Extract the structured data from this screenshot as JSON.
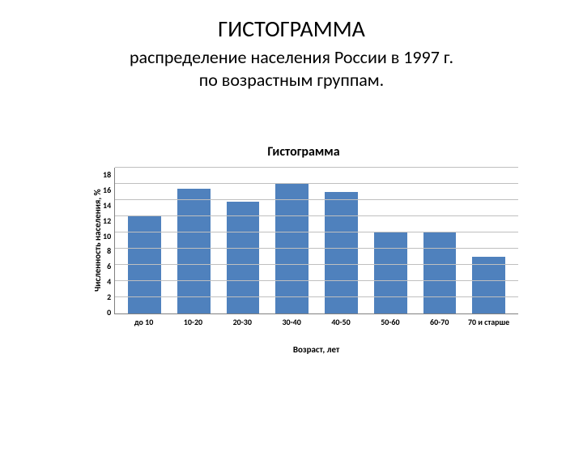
{
  "page": {
    "title": "ГИСТОГРАММА",
    "subtitle_line1": "распределение населения России в 1997 г.",
    "subtitle_line2": "по возрастным группам."
  },
  "chart": {
    "type": "bar",
    "title": "Гистограмма",
    "ylabel": "Численность населения, %",
    "xlabel": "Возраст, лет",
    "categories": [
      "до 10",
      "10-20",
      "20-30",
      "30-40",
      "40-50",
      "50-60",
      "60-70",
      "70 и старше"
    ],
    "values": [
      12,
      15.4,
      13.8,
      16,
      15,
      10,
      10,
      7
    ],
    "ylim": [
      0,
      18
    ],
    "ytick_step": 2,
    "yticks": [
      "18",
      "16",
      "14",
      "12",
      "10",
      "8",
      "6",
      "4",
      "2",
      "0"
    ],
    "bar_color": "#4f81bd",
    "grid_color": "#bfbfbf",
    "axis_color": "#808080",
    "background_color": "#ffffff",
    "bar_width": 0.55,
    "title_fontsize": 16,
    "label_fontsize": 11,
    "tick_fontsize": 10
  }
}
